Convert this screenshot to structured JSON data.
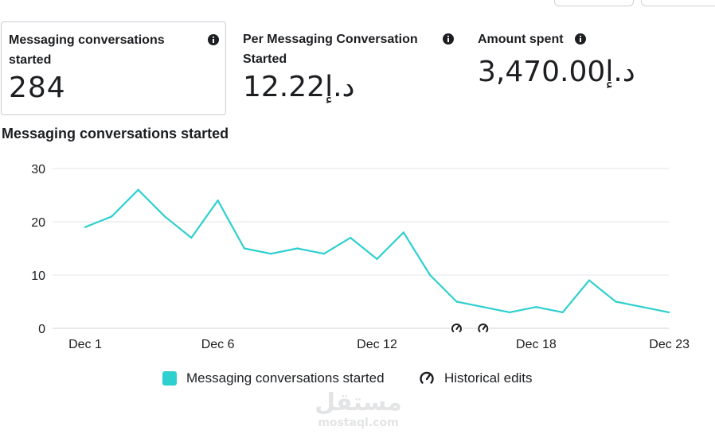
{
  "metrics": [
    {
      "label_line1": "Messaging conversations",
      "label_line2": "started",
      "value": "284"
    },
    {
      "label_line1": "Per Messaging Conversation",
      "label_line2": "Started",
      "value": "12.22د.إ"
    },
    {
      "label_line1": "Amount spent",
      "label_line2": "",
      "value": "3,470.00د.إ"
    }
  ],
  "info_icon": "info-icon",
  "chart_title": "Messaging conversations started",
  "chart_data": {
    "type": "line",
    "title": "Messaging conversations started",
    "xlabel": "",
    "ylabel": "",
    "x": [
      "Dec 1",
      "Dec 2",
      "Dec 3",
      "Dec 4",
      "Dec 5",
      "Dec 6",
      "Dec 7",
      "Dec 8",
      "Dec 9",
      "Dec 10",
      "Dec 11",
      "Dec 12",
      "Dec 13",
      "Dec 14",
      "Dec 15",
      "Dec 16",
      "Dec 17",
      "Dec 18",
      "Dec 19",
      "Dec 20",
      "Dec 21",
      "Dec 22",
      "Dec 23"
    ],
    "x_tick_labels": [
      "Dec 1",
      "Dec 6",
      "Dec 12",
      "Dec 18",
      "Dec 23"
    ],
    "series": [
      {
        "name": "Messaging conversations started",
        "values": [
          19,
          21,
          26,
          21,
          17,
          24,
          15,
          14,
          15,
          14,
          17,
          13,
          18,
          10,
          5,
          4,
          3,
          4,
          3,
          9,
          5,
          4,
          3
        ],
        "color": "#2ecfcf"
      }
    ],
    "ylim": [
      0,
      30
    ],
    "y_ticks": [
      0,
      10,
      20,
      30
    ],
    "grid": true,
    "historical_edit_markers": [
      "Dec 15",
      "Dec 16"
    ],
    "legend_position": "bottom"
  },
  "legend": {
    "series_label": "Messaging conversations started",
    "series_color": "#2ecfcf",
    "historical_label": "Historical edits",
    "historical_icon": "gauge-icon"
  },
  "watermark": {
    "logo": "مستقل",
    "text": "mostaql.com"
  }
}
